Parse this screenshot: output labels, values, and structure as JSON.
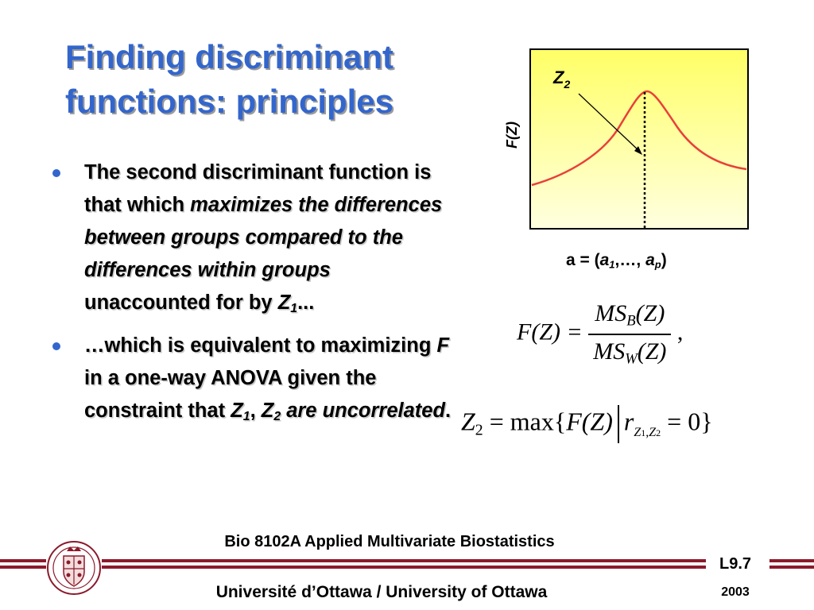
{
  "title": {
    "line1": "Finding discriminant",
    "line2": "functions: principles"
  },
  "bullets": {
    "b1": {
      "t1": "The second discriminant function is that which ",
      "t2": "maximizes the differences between groups compared to the differences within groups",
      "t3": " unaccounted for by ",
      "z": "Z",
      "zsub": "1",
      "t4": "..."
    },
    "b2": {
      "t1": "…which is equivalent to maximizing ",
      "f": "F",
      "t2": " in a one-way ANOVA given the constraint that ",
      "z1": "Z",
      "z1sub": "1",
      "comma": ", ",
      "z2": "Z",
      "z2sub": "2",
      "t3": " are uncorrelated",
      "t4": "."
    }
  },
  "plot": {
    "y_axis_label": "F(Z)",
    "peak_label": "Z",
    "peak_label_sub": "2",
    "x_label": {
      "a": "a = (",
      "a1": "a",
      "a1sub": "1",
      "mid": ",…, ",
      "ap": "a",
      "apsub": "p",
      "close": ")"
    },
    "colors": {
      "gradient_top": "#ffff66",
      "gradient_bottom": "#ffffe0",
      "curve": "#e8403a"
    }
  },
  "formula1": {
    "lhs": "F(Z) =",
    "num": "MS",
    "num_sub": "B",
    "num_arg": "(Z)",
    "den": "MS",
    "den_sub": "W",
    "den_arg": "(Z)",
    "trail": ","
  },
  "formula2": {
    "z": "Z",
    "zsub": "2",
    "eq": "=",
    "max": "max{",
    "f": "F(Z)",
    "r": "r",
    "rsub": "Z",
    "rsub1": "1",
    "rsubsep": ",",
    "rsubz": "Z",
    "rsub2": "2",
    "eq0": "= 0}"
  },
  "footer": {
    "course": "Bio 8102A Applied Multivariate Biostatistics",
    "university": "Université d’Ottawa / University of Ottawa",
    "lecture": "L9.7",
    "year": "2003",
    "bar_color": "#8b1a2b"
  }
}
